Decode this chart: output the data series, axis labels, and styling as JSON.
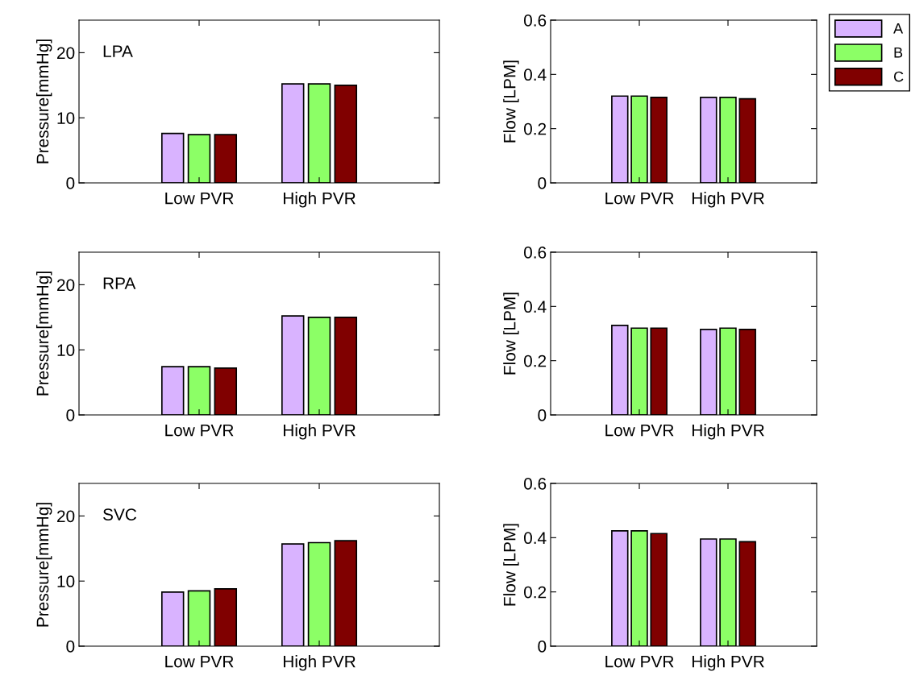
{
  "chart_data": [
    {
      "type": "bar",
      "categories": [
        "Low PVR",
        "High PVR"
      ],
      "ylabel": "Pressure[mmHg]",
      "ylim": [
        0,
        25
      ],
      "yticks": [
        0,
        10,
        20
      ],
      "annotations": [
        "LPA"
      ],
      "series": [
        {
          "color": "#d9b3ff",
          "values": [
            7.6,
            15.2
          ]
        },
        {
          "color": "#8cff66",
          "values": [
            7.4,
            15.2
          ]
        },
        {
          "color": "#800000",
          "values": [
            7.4,
            15.0
          ]
        }
      ]
    },
    {
      "type": "bar",
      "categories": [
        "Low PVR",
        "High PVR"
      ],
      "ylabel": "Flow [LPM]",
      "ylim": [
        0,
        0.6
      ],
      "yticks": [
        0,
        0.2,
        0.4,
        0.6
      ],
      "legend": "top right",
      "series": [
        {
          "name": "A",
          "color": "#d9b3ff",
          "values": [
            0.32,
            0.315
          ]
        },
        {
          "name": "B",
          "color": "#8cff66",
          "values": [
            0.32,
            0.315
          ]
        },
        {
          "name": "C",
          "color": "#800000",
          "values": [
            0.315,
            0.31
          ]
        }
      ]
    },
    {
      "type": "bar",
      "categories": [
        "Low PVR",
        "High PVR"
      ],
      "ylabel": "Pressure[mmHg]",
      "ylim": [
        0,
        25
      ],
      "yticks": [
        0,
        10,
        20
      ],
      "annotations": [
        "RPA"
      ],
      "series": [
        {
          "color": "#d9b3ff",
          "values": [
            7.4,
            15.2
          ]
        },
        {
          "color": "#8cff66",
          "values": [
            7.4,
            15.0
          ]
        },
        {
          "color": "#800000",
          "values": [
            7.2,
            15.0
          ]
        }
      ]
    },
    {
      "type": "bar",
      "categories": [
        "Low PVR",
        "High PVR"
      ],
      "ylabel": "Flow [LPM]",
      "ylim": [
        0,
        0.6
      ],
      "yticks": [
        0,
        0.2,
        0.4,
        0.6
      ],
      "series": [
        {
          "color": "#d9b3ff",
          "values": [
            0.33,
            0.315
          ]
        },
        {
          "color": "#8cff66",
          "values": [
            0.32,
            0.32
          ]
        },
        {
          "color": "#800000",
          "values": [
            0.32,
            0.315
          ]
        }
      ]
    },
    {
      "type": "bar",
      "categories": [
        "Low PVR",
        "High PVR"
      ],
      "ylabel": "Pressure[mmHg]",
      "ylim": [
        0,
        25
      ],
      "yticks": [
        0,
        10,
        20
      ],
      "annotations": [
        "SVC"
      ],
      "series": [
        {
          "color": "#d9b3ff",
          "values": [
            8.3,
            15.7
          ]
        },
        {
          "color": "#8cff66",
          "values": [
            8.5,
            15.9
          ]
        },
        {
          "color": "#800000",
          "values": [
            8.8,
            16.2
          ]
        }
      ]
    },
    {
      "type": "bar",
      "categories": [
        "Low PVR",
        "High PVR"
      ],
      "ylabel": "Flow [LPM]",
      "ylim": [
        0,
        0.6
      ],
      "yticks": [
        0,
        0.2,
        0.4,
        0.6
      ],
      "series": [
        {
          "color": "#d9b3ff",
          "values": [
            0.425,
            0.395
          ]
        },
        {
          "color": "#8cff66",
          "values": [
            0.425,
            0.395
          ]
        },
        {
          "color": "#800000",
          "values": [
            0.415,
            0.385
          ]
        }
      ]
    }
  ]
}
